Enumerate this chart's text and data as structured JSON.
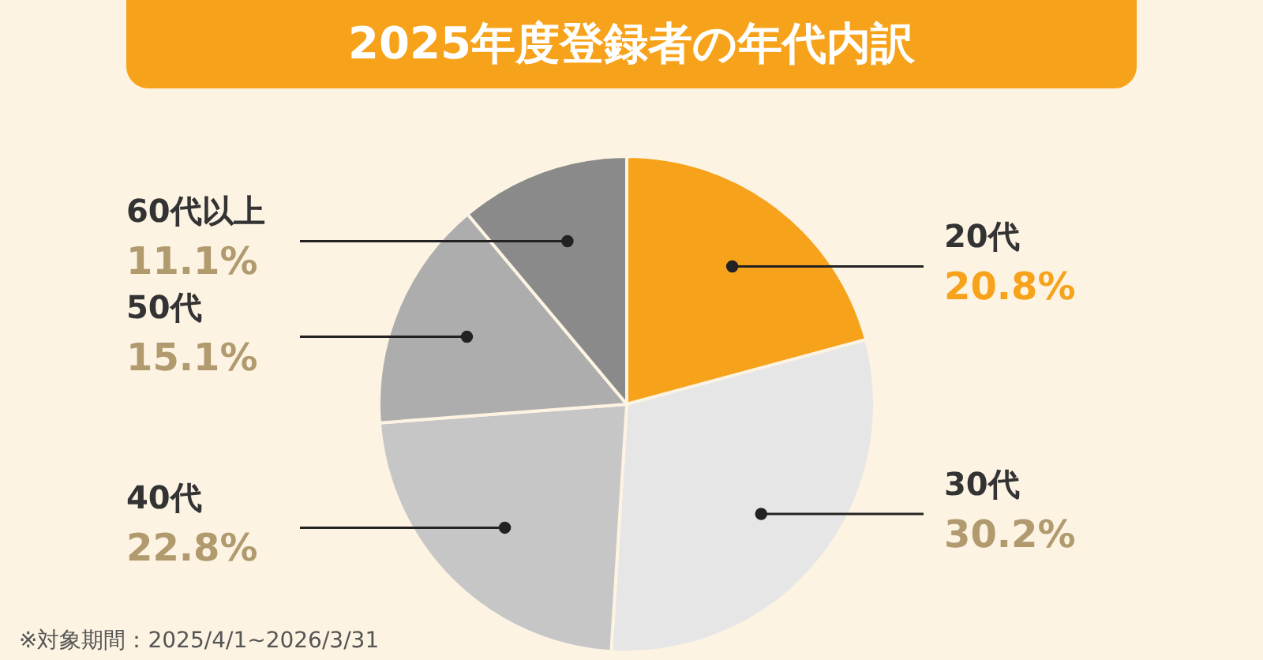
{
  "chart_data": {
    "type": "pie",
    "title": "2025年度登録者の年代内訳",
    "categories": [
      "20代",
      "30代",
      "40代",
      "50代",
      "60代以上"
    ],
    "values": [
      20.8,
      30.2,
      22.8,
      15.1,
      11.1
    ],
    "colors": [
      "#f7a21b",
      "#e6e6e6",
      "#c6c6c6",
      "#adadad",
      "#8a8a8a"
    ],
    "value_labels": [
      "20.8%",
      "30.2%",
      "22.8%",
      "15.1%",
      "11.1%"
    ],
    "annotations": [
      "※対象期間：2025/4/1~2026/3/31"
    ]
  }
}
